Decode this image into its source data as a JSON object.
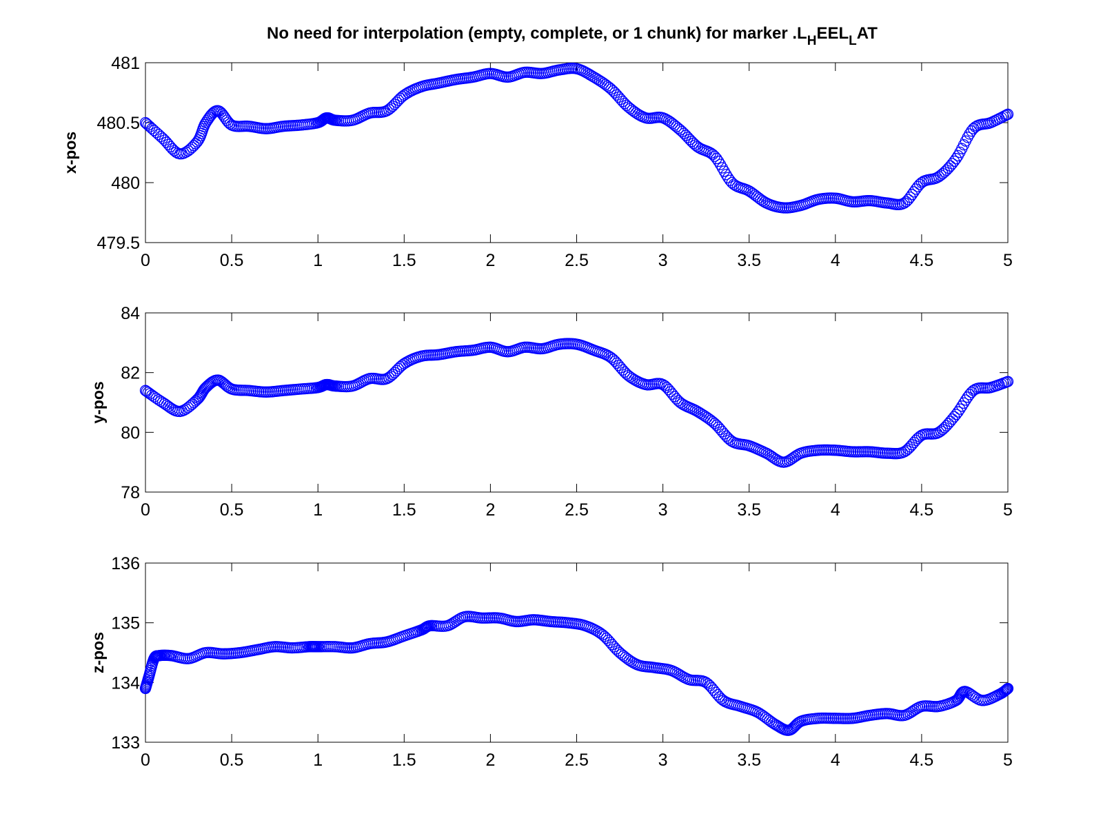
{
  "figure": {
    "title_parts": [
      "No need for interpolation (empty, complete, or 1 chunk) for marker .L",
      "H",
      "EEL",
      "L",
      "AT"
    ]
  },
  "chart_data": [
    {
      "type": "scatter",
      "marker": "circle",
      "color": "#0000ff",
      "ylabel": "x-pos",
      "xlim": [
        0,
        5
      ],
      "ylim": [
        479.5,
        481
      ],
      "xticks": [
        "0",
        "0.5",
        "1",
        "1.5",
        "2",
        "2.5",
        "3",
        "3.5",
        "4",
        "4.5",
        "5"
      ],
      "yticks": [
        "479.5",
        "480",
        "480.5",
        "481"
      ],
      "series": [
        {
          "x": [
            0,
            0.1,
            0.2,
            0.3,
            0.35,
            0.42,
            0.5,
            0.6,
            0.7,
            0.8,
            0.9,
            1.0,
            1.05,
            1.1,
            1.2,
            1.3,
            1.4,
            1.5,
            1.6,
            1.7,
            1.8,
            1.9,
            2.0,
            2.1,
            2.2,
            2.3,
            2.4,
            2.5,
            2.6,
            2.7,
            2.8,
            2.9,
            3.0,
            3.1,
            3.2,
            3.3,
            3.4,
            3.5,
            3.6,
            3.7,
            3.8,
            3.9,
            4.0,
            4.1,
            4.2,
            4.3,
            4.4,
            4.5,
            4.6,
            4.7,
            4.8,
            4.9,
            5.0
          ],
          "y": [
            480.5,
            480.37,
            480.24,
            480.34,
            480.5,
            480.6,
            480.48,
            480.47,
            480.45,
            480.47,
            480.48,
            480.5,
            480.54,
            480.52,
            480.52,
            480.58,
            480.6,
            480.73,
            480.8,
            480.83,
            480.86,
            480.88,
            480.91,
            480.88,
            480.92,
            480.91,
            480.94,
            480.95,
            480.88,
            480.78,
            480.63,
            480.54,
            480.54,
            480.44,
            480.3,
            480.22,
            480.0,
            479.93,
            479.83,
            479.79,
            479.81,
            479.86,
            479.87,
            479.84,
            479.85,
            479.83,
            479.83,
            480.0,
            480.05,
            480.2,
            480.45,
            480.5,
            480.57
          ]
        }
      ]
    },
    {
      "type": "scatter",
      "marker": "circle",
      "color": "#0000ff",
      "ylabel": "y-pos",
      "xlim": [
        0,
        5
      ],
      "ylim": [
        78,
        84
      ],
      "xticks": [
        "0",
        "0.5",
        "1",
        "1.5",
        "2",
        "2.5",
        "3",
        "3.5",
        "4",
        "4.5",
        "5"
      ],
      "yticks": [
        "78",
        "80",
        "82",
        "84"
      ],
      "series": [
        {
          "x": [
            0,
            0.1,
            0.2,
            0.3,
            0.35,
            0.42,
            0.5,
            0.6,
            0.7,
            0.8,
            0.9,
            1.0,
            1.05,
            1.1,
            1.2,
            1.3,
            1.4,
            1.5,
            1.6,
            1.7,
            1.8,
            1.9,
            2.0,
            2.1,
            2.2,
            2.3,
            2.4,
            2.5,
            2.6,
            2.7,
            2.8,
            2.9,
            3.0,
            3.1,
            3.2,
            3.3,
            3.4,
            3.5,
            3.6,
            3.7,
            3.8,
            3.9,
            4.0,
            4.1,
            4.2,
            4.3,
            4.4,
            4.5,
            4.6,
            4.7,
            4.8,
            4.9,
            5.0
          ],
          "y": [
            81.4,
            81.0,
            80.7,
            81.1,
            81.5,
            81.75,
            81.45,
            81.4,
            81.35,
            81.4,
            81.45,
            81.5,
            81.6,
            81.55,
            81.55,
            81.8,
            81.8,
            82.3,
            82.55,
            82.6,
            82.7,
            82.75,
            82.85,
            82.7,
            82.85,
            82.8,
            82.95,
            82.95,
            82.75,
            82.5,
            81.9,
            81.6,
            81.6,
            81.0,
            80.7,
            80.3,
            79.7,
            79.55,
            79.3,
            79.0,
            79.3,
            79.4,
            79.4,
            79.35,
            79.35,
            79.3,
            79.35,
            79.9,
            80.0,
            80.6,
            81.4,
            81.5,
            81.7
          ]
        }
      ]
    },
    {
      "type": "scatter",
      "marker": "circle",
      "color": "#0000ff",
      "ylabel": "z-pos",
      "xlim": [
        0,
        5
      ],
      "ylim": [
        133,
        136
      ],
      "xticks": [
        "0",
        "0.5",
        "1",
        "1.5",
        "2",
        "2.5",
        "3",
        "3.5",
        "4",
        "4.5",
        "5"
      ],
      "yticks": [
        "133",
        "134",
        "135",
        "136"
      ],
      "series": [
        {
          "x": [
            0,
            0.02,
            0.05,
            0.08,
            0.15,
            0.25,
            0.35,
            0.45,
            0.55,
            0.65,
            0.75,
            0.85,
            0.95,
            1.0,
            1.1,
            1.2,
            1.3,
            1.4,
            1.5,
            1.6,
            1.65,
            1.75,
            1.85,
            1.95,
            2.05,
            2.15,
            2.25,
            2.35,
            2.45,
            2.55,
            2.65,
            2.75,
            2.85,
            2.95,
            3.05,
            3.15,
            3.25,
            3.35,
            3.45,
            3.55,
            3.65,
            3.73,
            3.8,
            3.9,
            4.0,
            4.1,
            4.2,
            4.3,
            4.4,
            4.5,
            4.6,
            4.7,
            4.75,
            4.85,
            4.95,
            5.0
          ],
          "y": [
            133.9,
            134.1,
            134.4,
            134.45,
            134.45,
            134.4,
            134.5,
            134.48,
            134.5,
            134.55,
            134.6,
            134.58,
            134.6,
            134.6,
            134.6,
            134.58,
            134.65,
            134.68,
            134.78,
            134.88,
            134.95,
            134.95,
            135.1,
            135.08,
            135.08,
            135.02,
            135.05,
            135.02,
            135.0,
            134.95,
            134.8,
            134.5,
            134.3,
            134.25,
            134.2,
            134.05,
            134.0,
            133.7,
            133.6,
            133.5,
            133.3,
            133.2,
            133.35,
            133.4,
            133.4,
            133.4,
            133.45,
            133.48,
            133.45,
            133.6,
            133.6,
            133.7,
            133.85,
            133.7,
            133.8,
            133.9
          ]
        }
      ]
    }
  ]
}
